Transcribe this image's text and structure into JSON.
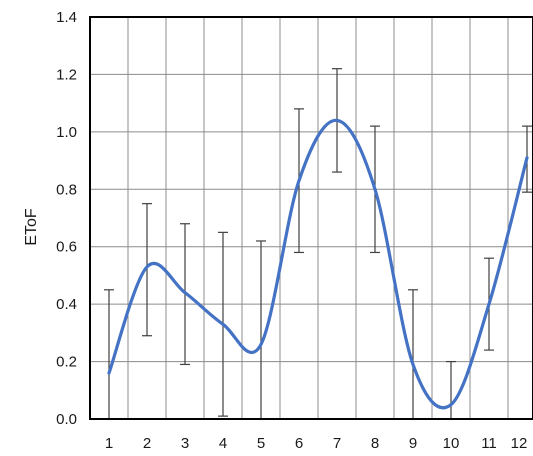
{
  "chart_data": {
    "type": "line",
    "title": "",
    "xlabel": "",
    "ylabel": "EToF",
    "x": [
      1,
      2,
      3,
      4,
      5,
      6,
      7,
      8,
      9,
      10,
      11,
      12
    ],
    "xtick_labels": [
      "1",
      "2",
      "3",
      "4",
      "5",
      "6",
      "7",
      "8",
      "9",
      "10",
      "11",
      "12"
    ],
    "ylim": [
      0,
      1.4
    ],
    "yticks": [
      0.0,
      0.2,
      0.4,
      0.6,
      0.8,
      1.0,
      1.2,
      1.4
    ],
    "ytick_labels": [
      "0.0",
      "0.2",
      "0.4",
      "0.6",
      "0.8",
      "1.0",
      "1.2",
      "1.4"
    ],
    "grid": true,
    "smoothed": true,
    "series": [
      {
        "values": [
          0.16,
          0.53,
          0.44,
          0.33,
          0.26,
          0.83,
          1.04,
          0.8,
          0.19,
          0.05,
          0.4,
          0.91
        ],
        "error_upper": [
          0.45,
          0.75,
          0.68,
          0.65,
          0.62,
          1.08,
          1.22,
          1.02,
          0.45,
          0.2,
          0.56,
          1.02
        ],
        "error_lower": [
          0.0,
          0.29,
          0.19,
          0.01,
          0.0,
          0.58,
          0.86,
          0.58,
          0.0,
          0.0,
          0.24,
          0.79
        ],
        "color": "#4472C4"
      }
    ]
  }
}
